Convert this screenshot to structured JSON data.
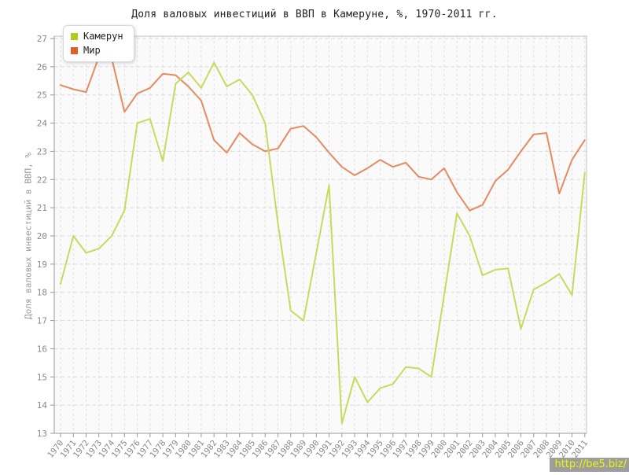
{
  "title": "Доля валовых инвестиций в ВВП в Камеруне, %, 1970-2011 гг.",
  "watermark": "http://be5.biz/",
  "chart_data": {
    "type": "line",
    "title": "Доля валовых инвестиций в ВВП в Камеруне, %, 1970-2011 гг.",
    "xlabel": "",
    "ylabel": "Доля валовых инвестиций в ВВП, %",
    "ylim": [
      13,
      27
    ],
    "ytick_step": 1,
    "grid": true,
    "grid_style": "dashed",
    "legend_position": "top-left",
    "categories": [
      1970,
      1971,
      1972,
      1973,
      1974,
      1975,
      1976,
      1977,
      1978,
      1979,
      1980,
      1981,
      1982,
      1983,
      1984,
      1985,
      1986,
      1987,
      1988,
      1989,
      1990,
      1991,
      1992,
      1993,
      1994,
      1995,
      1996,
      1997,
      1998,
      1999,
      2000,
      2001,
      2002,
      2003,
      2004,
      2005,
      2006,
      2007,
      2008,
      2009,
      2010,
      2011
    ],
    "series": [
      {
        "name": "Камерун",
        "swatch_color": "#b3cc1a",
        "line_color": "#c8da5e",
        "values": [
          18.3,
          20.0,
          19.4,
          19.55,
          20.0,
          20.9,
          24.0,
          24.15,
          22.65,
          25.4,
          25.8,
          25.25,
          26.15,
          25.3,
          25.55,
          25.0,
          24.0,
          20.45,
          17.35,
          17.0,
          19.4,
          21.8,
          13.35,
          15.0,
          14.1,
          14.6,
          14.75,
          15.35,
          15.3,
          15.0,
          17.9,
          20.8,
          20.0,
          18.6,
          18.8,
          18.85,
          16.7,
          18.1,
          18.35,
          18.65,
          17.9,
          22.25
        ]
      },
      {
        "name": "Мир",
        "swatch_color": "#de5f28",
        "line_color": "#e68b5f",
        "values": [
          25.35,
          25.2,
          25.1,
          26.35,
          26.3,
          24.4,
          25.05,
          25.25,
          25.75,
          25.7,
          25.3,
          24.8,
          23.4,
          22.95,
          23.65,
          23.25,
          23.0,
          23.1,
          23.8,
          23.9,
          23.5,
          22.95,
          22.45,
          22.15,
          22.4,
          22.7,
          22.45,
          22.6,
          22.1,
          22.0,
          22.4,
          21.55,
          20.9,
          21.1,
          21.95,
          22.35,
          23.0,
          23.6,
          23.65,
          21.5,
          22.7,
          23.4
        ]
      }
    ],
    "axis_colors": {
      "axis_line": "#999999",
      "border": "#c2c2c2",
      "grid": "#dcdcdc",
      "tick_label": "#888888",
      "plot_bg": "#fafafa"
    }
  }
}
